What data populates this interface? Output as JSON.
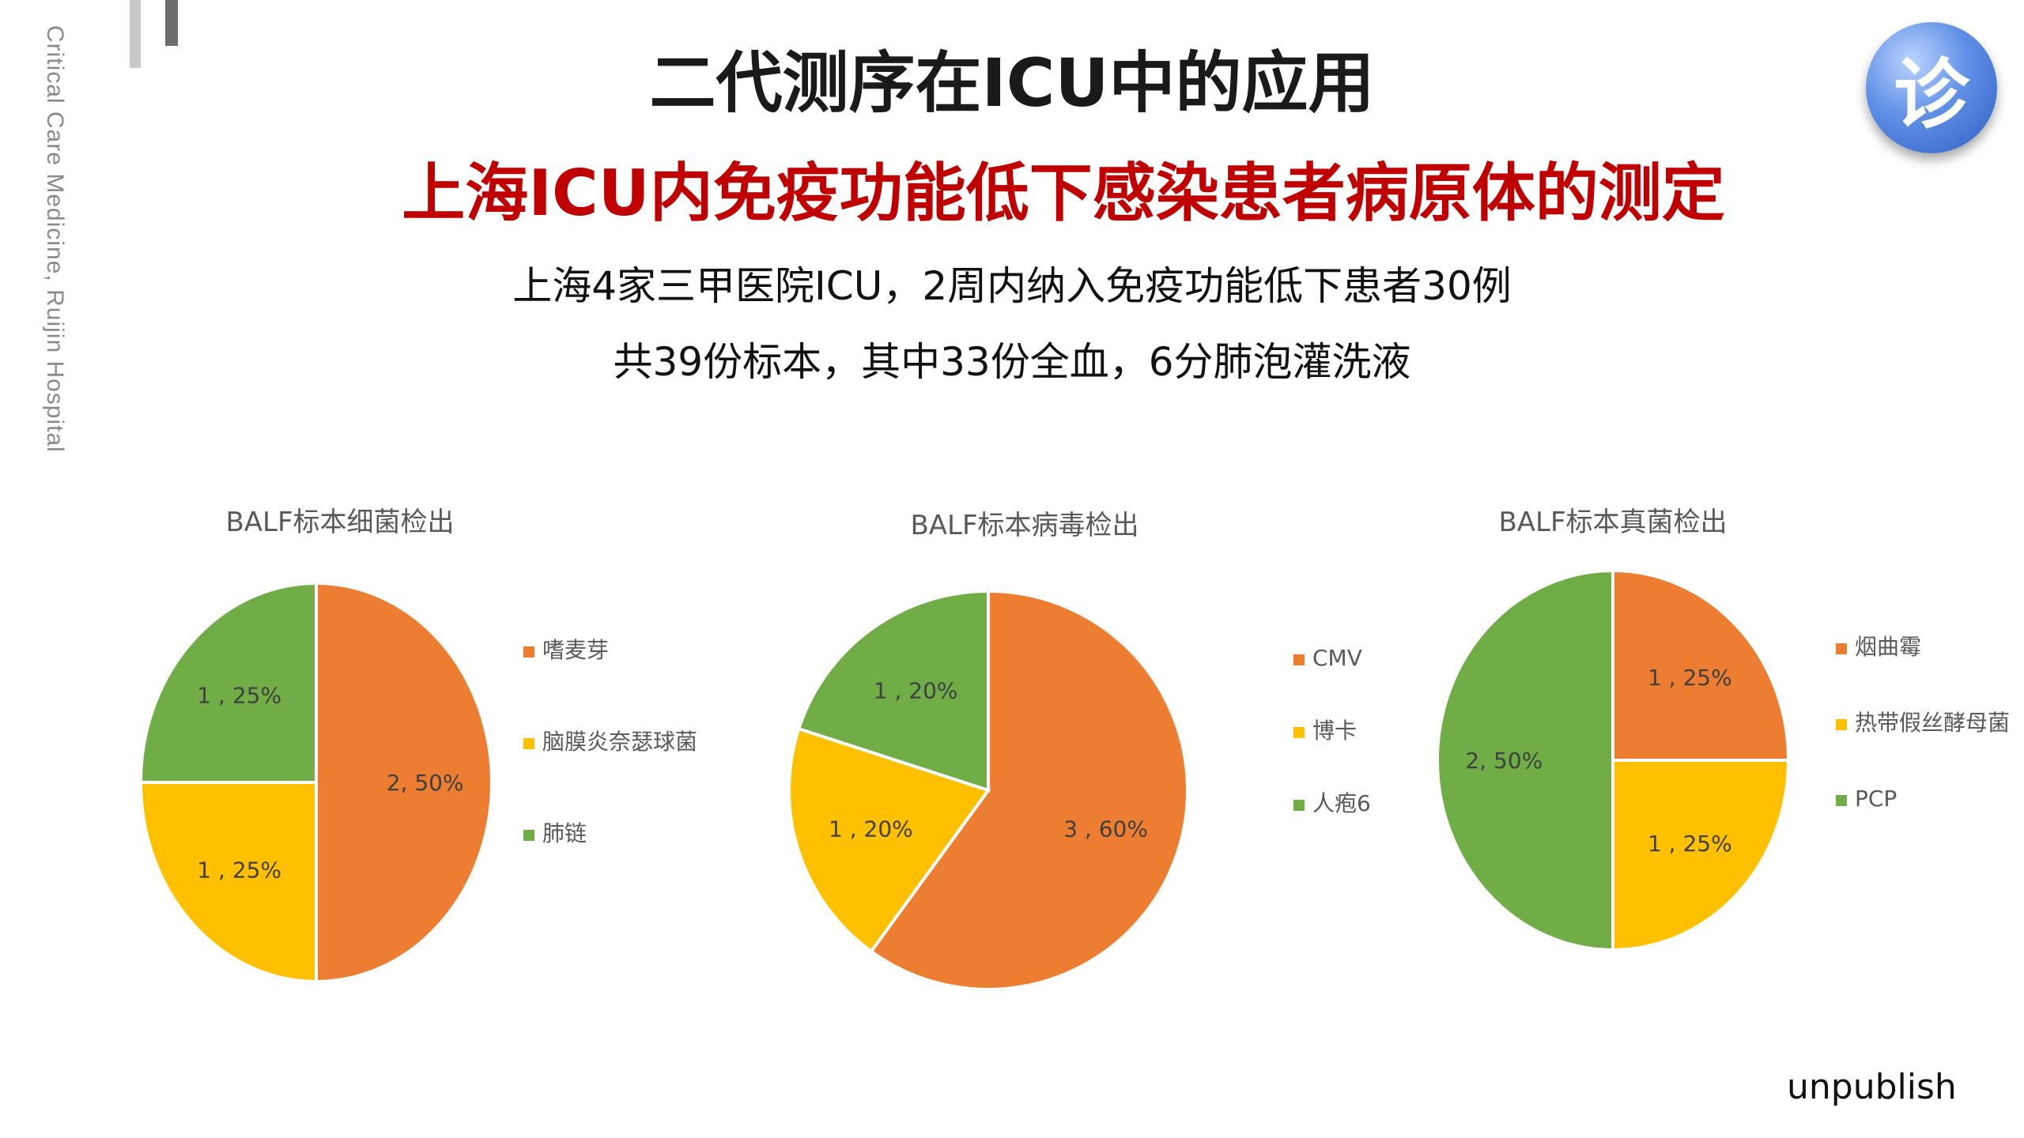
{
  "page": {
    "side_text": "Critical Care Medicine, Ruijin Hospital",
    "title": "二代测序在ICU中的应用",
    "subtitle": "上海ICU内免疫功能低下感染患者病原体的测定",
    "line1": "上海4家三甲医院ICU，2周内纳入免疫功能低下患者30例",
    "line2": "共39份标本，其中33份全血，6分肺泡灌洗液",
    "badge": "诊",
    "footnote": "unpublish"
  },
  "chart_data": [
    {
      "type": "pie",
      "title": "BALF标本细菌检出",
      "slices": [
        {
          "label": "嗜麦芽",
          "value": 2,
          "data_label": "2, 50%",
          "color": "#ED7D31"
        },
        {
          "label": "脑膜炎奈瑟球菌",
          "value": 1,
          "data_label": "1 , 25%",
          "color": "#FFC000"
        },
        {
          "label": "肺链",
          "value": 1,
          "data_label": "1 , 25%",
          "color": "#70AD47"
        }
      ],
      "legend": "right"
    },
    {
      "type": "pie",
      "title": "BALF标本病毒检出",
      "slices": [
        {
          "label": "CMV",
          "value": 3,
          "data_label": "3 , 60%",
          "color": "#ED7D31"
        },
        {
          "label": "博卡",
          "value": 1,
          "data_label": "1 , 20%",
          "color": "#FFC000"
        },
        {
          "label": "人疱6",
          "value": 1,
          "data_label": "1 , 20%",
          "color": "#70AD47"
        }
      ],
      "legend": "right"
    },
    {
      "type": "pie",
      "title": "BALF标本真菌检出",
      "slices": [
        {
          "label": "烟曲霉",
          "value": 1,
          "data_label": "1 , 25%",
          "color": "#ED7D31"
        },
        {
          "label": "热带假丝酵母菌",
          "value": 1,
          "data_label": "1 , 25%",
          "color": "#FFC000"
        },
        {
          "label": "PCP",
          "value": 2,
          "data_label": "2, 50%",
          "color": "#70AD47"
        }
      ],
      "legend": "right"
    }
  ]
}
